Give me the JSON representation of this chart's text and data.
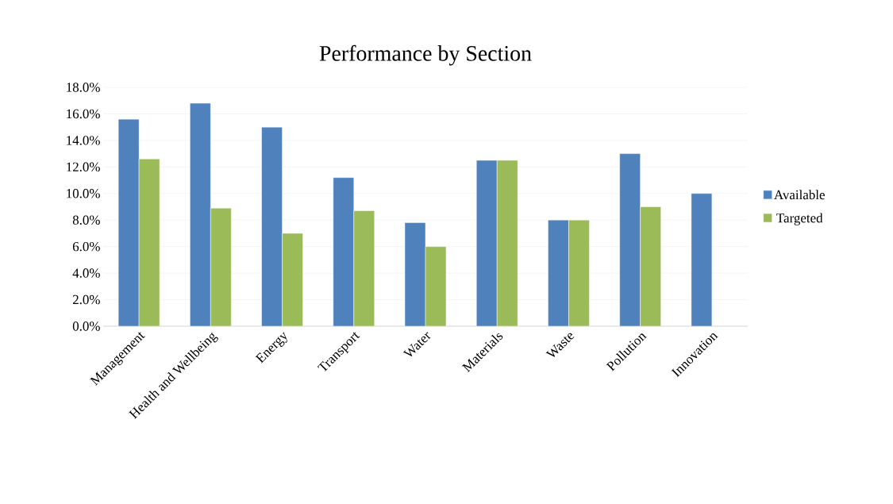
{
  "chart_data": {
    "type": "bar",
    "title": "Performance by Section",
    "categories": [
      "Management",
      "Health and Wellbeing",
      "Energy",
      "Transport",
      "Water",
      "Materials",
      "Waste",
      "Pollution",
      "Innovation"
    ],
    "series": [
      {
        "name": "Available",
        "color": "#4f81bd",
        "values": [
          15.6,
          16.8,
          15.0,
          11.2,
          7.8,
          12.5,
          8.0,
          13.0,
          10.0
        ]
      },
      {
        "name": "Targeted",
        "color": "#9bbb59",
        "values": [
          12.6,
          8.9,
          7.0,
          8.7,
          6.0,
          12.5,
          8.0,
          9.0,
          null
        ]
      }
    ],
    "ylim": [
      0,
      18
    ],
    "yticks": [
      {
        "value": 0,
        "label": "0.0%"
      },
      {
        "value": 2,
        "label": "2.0%"
      },
      {
        "value": 4,
        "label": "4.0%"
      },
      {
        "value": 6,
        "label": "6.0%"
      },
      {
        "value": 8,
        "label": "8.0%"
      },
      {
        "value": 10,
        "label": "10.0%"
      },
      {
        "value": 12,
        "label": "12.0%"
      },
      {
        "value": 14,
        "label": "14.0%"
      },
      {
        "value": 16,
        "label": "16.0%"
      },
      {
        "value": 18,
        "label": "18.0%"
      }
    ],
    "grid": "y",
    "legend": "right"
  }
}
